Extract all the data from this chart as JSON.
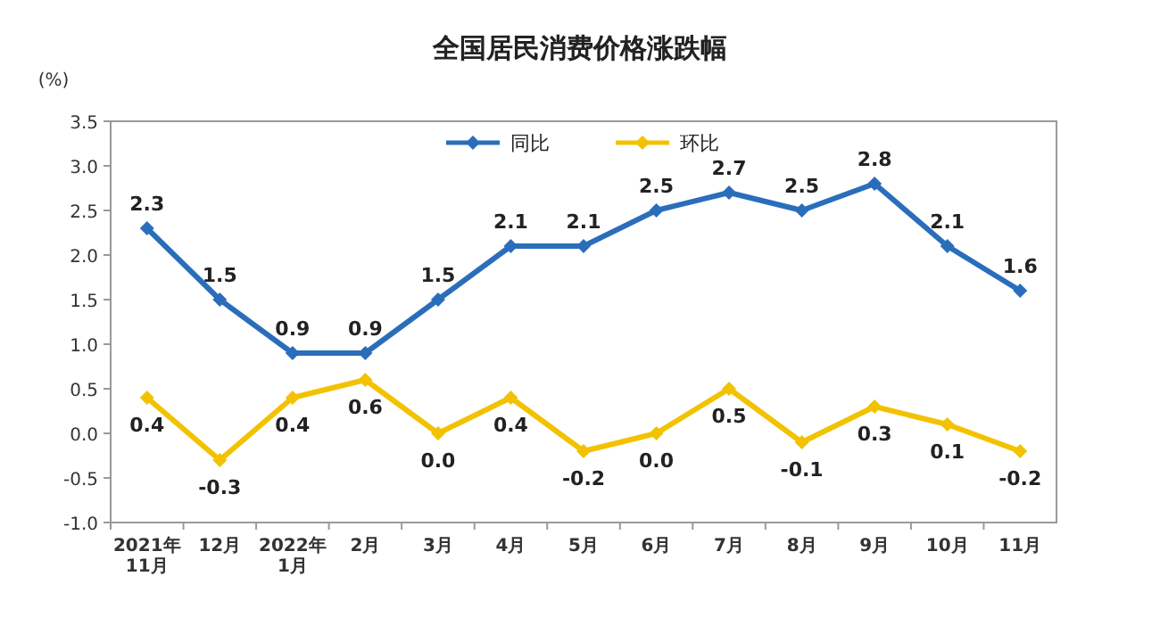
{
  "chart_data": {
    "type": "line",
    "title": "全国居民消费价格涨跌幅",
    "ylabel": "(%)",
    "categories": [
      "2021年\n11月",
      "12月",
      "2022年\n1月",
      "2月",
      "3月",
      "4月",
      "5月",
      "6月",
      "7月",
      "8月",
      "9月",
      "10月",
      "11月"
    ],
    "series": [
      {
        "name": "同比",
        "color": "#2a6ebb",
        "values": [
          2.3,
          1.5,
          0.9,
          0.9,
          1.5,
          2.1,
          2.1,
          2.5,
          2.7,
          2.5,
          2.8,
          2.1,
          1.6
        ],
        "value_labels": [
          "2.3",
          "1.5",
          "0.9",
          "0.9",
          "1.5",
          "2.1",
          "2.1",
          "2.5",
          "2.7",
          "2.5",
          "2.8",
          "2.1",
          "1.6"
        ]
      },
      {
        "name": "环比",
        "color": "#f2c200",
        "values": [
          0.4,
          -0.3,
          0.4,
          0.6,
          0.0,
          0.4,
          -0.2,
          0.0,
          0.5,
          -0.1,
          0.3,
          0.1,
          -0.2
        ],
        "value_labels": [
          "0.4",
          "-0.3",
          "0.4",
          "0.6",
          "0.0",
          "0.4",
          "-0.2",
          "0.0",
          "0.5",
          "-0.1",
          "0.3",
          "0.1",
          "-0.2"
        ]
      }
    ],
    "ylim": [
      -1.0,
      3.5
    ],
    "yticks": [
      {
        "value": -1,
        "label": "-1.0"
      },
      -0.5,
      {
        "value": 0,
        "label": "0.0"
      },
      0.5,
      {
        "value": 1,
        "label": "1.0"
      },
      1.5,
      {
        "value": 2,
        "label": "2.0"
      },
      2.5,
      {
        "value": 3,
        "label": "3.0"
      },
      3.5
    ],
    "legend": "top",
    "marker": "diamond",
    "line_style": "solid",
    "grid": false
  }
}
